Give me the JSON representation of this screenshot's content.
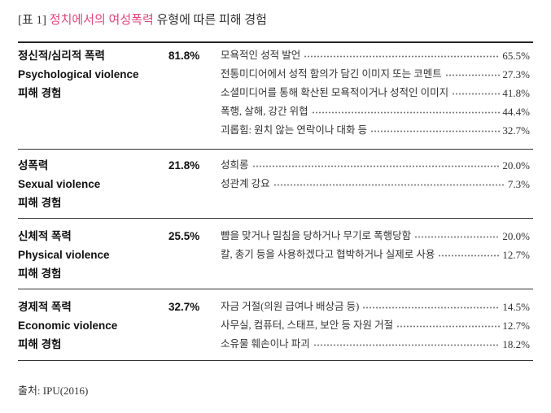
{
  "title": {
    "prefix": "[표 1]",
    "highlight": "정치에서의 여성폭력",
    "suffix": "유형에 따른 피해 경험"
  },
  "colors": {
    "highlight": "#e0457b",
    "text": "#222222"
  },
  "sections": [
    {
      "name_ko": "정신적/심리적 폭력",
      "name_en": "Psychological violence",
      "caption": "피해 경험",
      "total": "81.8%",
      "items": [
        {
          "label": "모욕적인 성적 발언",
          "value": "65.5%"
        },
        {
          "label": "전통미디어에서 성적 함의가 담긴 이미지 또는 코멘트",
          "value": "27.3%"
        },
        {
          "label": "소셜미디어를 통해 확산된 모욕적이거나 성적인 이미지",
          "value": "41.8%"
        },
        {
          "label": "폭행, 살해, 강간 위협",
          "value": "44.4%"
        },
        {
          "label": "괴롭힘: 원치 않는 연락이나 대화 등",
          "value": "32.7%"
        }
      ]
    },
    {
      "name_ko": "성폭력",
      "name_en": "Sexual violence",
      "caption": "피해 경험",
      "total": "21.8%",
      "items": [
        {
          "label": "성희롱",
          "value": "20.0%"
        },
        {
          "label": "성관계 강요",
          "value": "7.3%"
        }
      ]
    },
    {
      "name_ko": "신체적 폭력",
      "name_en": "Physical violence",
      "caption": "피해 경험",
      "total": "25.5%",
      "items": [
        {
          "label": "뺨을 맞거나 밀침을 당하거나 무기로 폭행당함",
          "value": "20.0%"
        },
        {
          "label": "칼, 총기 등을 사용하겠다고 협박하거나 실제로 사용",
          "value": "12.7%"
        }
      ]
    },
    {
      "name_ko": "경제적 폭력",
      "name_en": "Economic violence",
      "caption": "피해 경험",
      "total": "32.7%",
      "items": [
        {
          "label": "자금 거절(의원 급여나 배상금 등)",
          "value": "14.5%"
        },
        {
          "label": "사무실, 컴퓨터, 스태프, 보안 등 자원 거절",
          "value": "12.7%"
        },
        {
          "label": "소유물 훼손이나 파괴",
          "value": "18.2%"
        }
      ]
    }
  ],
  "source": "출처: IPU(2016)"
}
